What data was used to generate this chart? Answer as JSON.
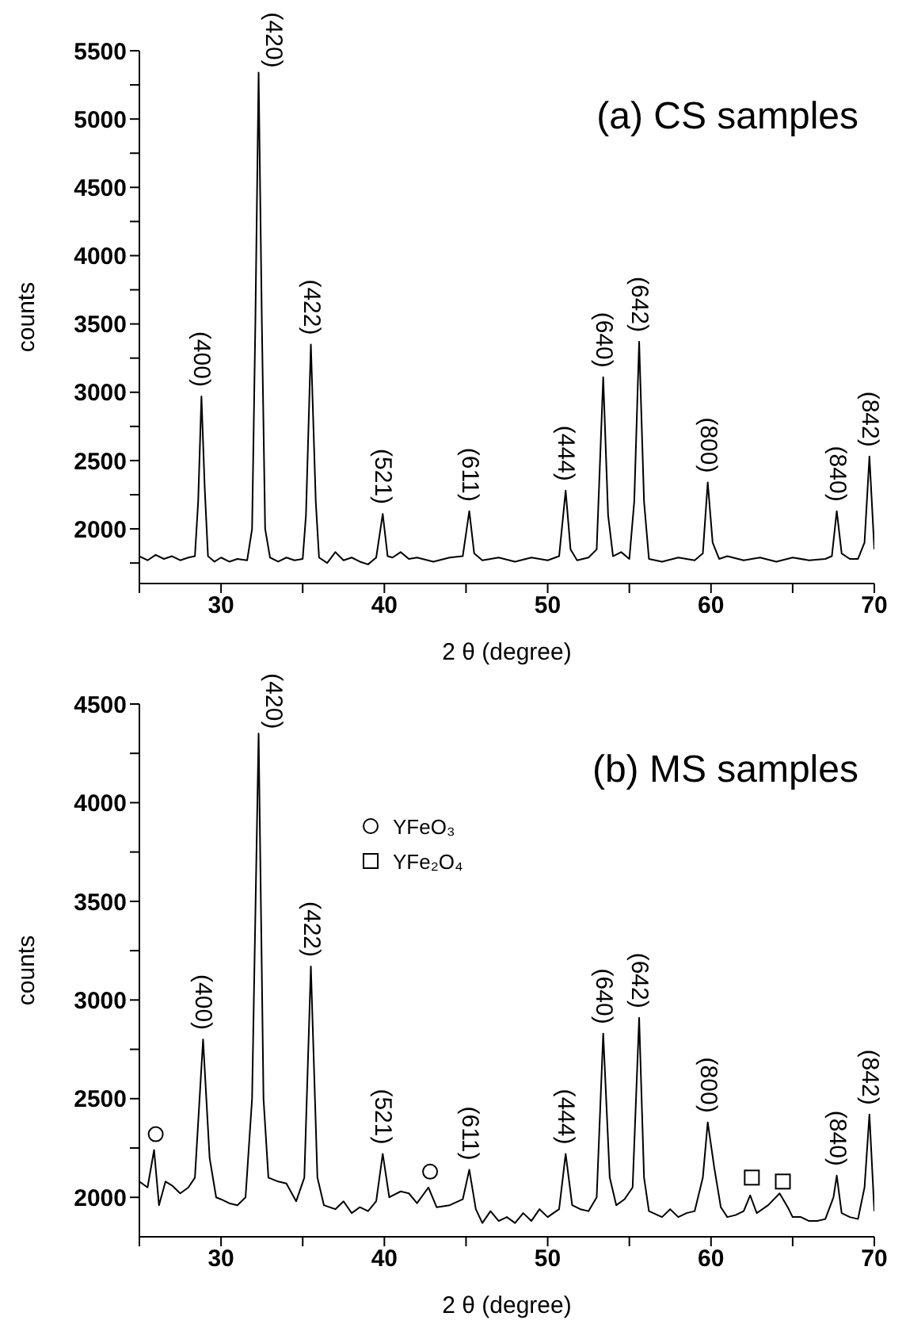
{
  "chart_data": [
    {
      "type": "line",
      "title": "(a) CS samples",
      "xlabel": "2 θ (degree)",
      "ylabel": "counts",
      "xlim": [
        25,
        70
      ],
      "xticks": [
        {
          "value": 25,
          "label": null
        },
        30,
        {
          "value": 35,
          "label": null
        },
        40,
        {
          "value": 45,
          "label": null
        },
        50,
        {
          "value": 55,
          "label": null
        },
        60,
        {
          "value": 65,
          "label": null
        },
        70
      ],
      "ylim": [
        1600,
        5500
      ],
      "yticks": [
        {
          "value": 1750,
          "label": null
        },
        2000,
        {
          "value": 2250,
          "label": null
        },
        2500,
        {
          "value": 2750,
          "label": null
        },
        3000,
        {
          "value": 3250,
          "label": null
        },
        3500,
        {
          "value": 3750,
          "label": null
        },
        4000,
        {
          "value": 4250,
          "label": null
        },
        4500,
        {
          "value": 4750,
          "label": null
        },
        5000,
        {
          "value": 5250,
          "label": null
        },
        5500
      ],
      "grid": false,
      "legend": false,
      "line_style": "solid",
      "marker": "none",
      "series": [
        {
          "color": "#000000",
          "x": [
            25,
            25.5,
            26,
            26.5,
            27,
            27.5,
            28,
            28.4,
            28.6,
            28.8,
            29.0,
            29.2,
            29.6,
            30,
            30.5,
            31,
            31.6,
            31.9,
            32.1,
            32.3,
            32.5,
            32.7,
            33,
            33.5,
            34,
            34.5,
            35,
            35.2,
            35.5,
            35.8,
            36,
            36.5,
            37,
            37.5,
            38,
            38.5,
            39,
            39.5,
            39.9,
            40.2,
            40.5,
            41,
            41.5,
            42,
            43,
            44,
            44.8,
            45.2,
            45.5,
            46,
            47,
            48,
            49,
            50,
            50.7,
            51.1,
            51.4,
            51.8,
            52.5,
            53.0,
            53.4,
            53.7,
            54,
            54.5,
            55,
            55.3,
            55.6,
            55.9,
            56.2,
            57,
            58,
            59,
            59.5,
            59.8,
            60.1,
            60.5,
            61,
            62,
            63,
            64,
            65,
            66,
            67,
            67.4,
            67.7,
            68,
            68.5,
            69,
            69.4,
            69.7,
            70
          ],
          "values": [
            1800,
            1770,
            1810,
            1780,
            1800,
            1770,
            1790,
            1800,
            2200,
            2970,
            2300,
            1800,
            1760,
            1790,
            1760,
            1780,
            1770,
            2000,
            3500,
            5340,
            3500,
            2000,
            1790,
            1760,
            1790,
            1770,
            1780,
            2100,
            3350,
            2200,
            1790,
            1750,
            1830,
            1770,
            1790,
            1760,
            1740,
            1790,
            2110,
            1800,
            1790,
            1830,
            1780,
            1790,
            1760,
            1790,
            1800,
            2130,
            1820,
            1770,
            1790,
            1760,
            1790,
            1770,
            1800,
            2280,
            1850,
            1770,
            1790,
            1850,
            3110,
            2100,
            1800,
            1830,
            1780,
            2200,
            3370,
            2200,
            1780,
            1760,
            1790,
            1770,
            1820,
            2340,
            1900,
            1780,
            1800,
            1770,
            1790,
            1760,
            1790,
            1770,
            1780,
            1800,
            2130,
            1820,
            1780,
            1780,
            1900,
            2530,
            1850
          ]
        }
      ],
      "annotations": [
        {
          "text": "(400)",
          "x": 28.8,
          "y": 2970
        },
        {
          "text": "(420)",
          "x": 32.3,
          "y": 5340
        },
        {
          "text": "(422)",
          "x": 35.5,
          "y": 3350
        },
        {
          "text": "(521)",
          "x": 39.9,
          "y": 2110
        },
        {
          "text": "(611)",
          "x": 45.2,
          "y": 2130
        },
        {
          "text": "(444)",
          "x": 51.1,
          "y": 2280
        },
        {
          "text": "(640)",
          "x": 53.4,
          "y": 3110
        },
        {
          "text": "(642)",
          "x": 55.6,
          "y": 3370
        },
        {
          "text": "(800)",
          "x": 59.8,
          "y": 2340
        },
        {
          "text": "(840)",
          "x": 67.7,
          "y": 2130
        },
        {
          "text": "(842)",
          "x": 69.7,
          "y": 2530
        }
      ]
    },
    {
      "type": "line",
      "title": "(b) MS samples",
      "xlabel": "2 θ (degree)",
      "ylabel": "counts",
      "xlim": [
        25,
        70
      ],
      "xticks": [
        {
          "value": 25,
          "label": null
        },
        30,
        {
          "value": 35,
          "label": null
        },
        40,
        {
          "value": 45,
          "label": null
        },
        50,
        {
          "value": 55,
          "label": null
        },
        60,
        {
          "value": 65,
          "label": null
        },
        70
      ],
      "ylim": [
        1800,
        4500
      ],
      "yticks": [
        2000,
        {
          "value": 2250,
          "label": null
        },
        2500,
        {
          "value": 2750,
          "label": null
        },
        3000,
        {
          "value": 3250,
          "label": null
        },
        3500,
        {
          "value": 3750,
          "label": null
        },
        4000,
        {
          "value": 4250,
          "label": null
        },
        4500
      ],
      "grid": false,
      "legend": "top",
      "line_style": "solid",
      "series": [
        {
          "color": "#000000",
          "marker": "none",
          "x": [
            25,
            25.5,
            25.9,
            26.2,
            26.6,
            27,
            27.5,
            28,
            28.4,
            28.9,
            29.3,
            29.7,
            30,
            30.5,
            31,
            31.5,
            31.9,
            32.3,
            32.6,
            32.9,
            33.5,
            34,
            34.6,
            35.1,
            35.5,
            35.9,
            36.3,
            37,
            37.5,
            38,
            38.5,
            39,
            39.5,
            39.9,
            40.3,
            41,
            41.5,
            42,
            42.7,
            43.2,
            44,
            44.8,
            45.2,
            45.6,
            46,
            46.5,
            47,
            47.5,
            48,
            48.5,
            49,
            49.5,
            50,
            50.7,
            51.1,
            51.5,
            52,
            52.5,
            53,
            53.4,
            53.8,
            54.2,
            54.7,
            55.2,
            55.6,
            55.9,
            56.2,
            57,
            57.5,
            58,
            58.5,
            59,
            59.5,
            59.8,
            60.2,
            60.6,
            61,
            61.5,
            62,
            62.4,
            62.8,
            63.5,
            64.2,
            64.7,
            65,
            65.5,
            66,
            66.5,
            67,
            67.5,
            67.7,
            68,
            68.5,
            69,
            69.4,
            69.7,
            70
          ],
          "values": [
            2080,
            2050,
            2240,
            1960,
            2080,
            2060,
            2020,
            2050,
            2100,
            2800,
            2200,
            2000,
            1990,
            1970,
            1960,
            2000,
            2500,
            4350,
            2500,
            2100,
            2080,
            2070,
            1980,
            2100,
            3170,
            2100,
            1960,
            1940,
            1980,
            1920,
            1950,
            1930,
            1980,
            2220,
            2000,
            2030,
            2020,
            1970,
            2050,
            1950,
            1960,
            1990,
            2140,
            1940,
            1870,
            1930,
            1880,
            1900,
            1870,
            1920,
            1880,
            1940,
            1900,
            1940,
            2220,
            1960,
            1940,
            1930,
            2000,
            2830,
            2100,
            1960,
            1990,
            2050,
            2910,
            2100,
            1930,
            1900,
            1940,
            1900,
            1920,
            1930,
            2100,
            2380,
            2150,
            1950,
            1900,
            1910,
            1930,
            2010,
            1920,
            1960,
            2020,
            1950,
            1900,
            1900,
            1880,
            1880,
            1890,
            2000,
            2110,
            1920,
            1900,
            1890,
            2050,
            2420,
            1930
          ]
        },
        {
          "type": "scatter",
          "name": "YFeO₃",
          "color": "#000000",
          "marker": "circle",
          "x": [
            26.0,
            42.8
          ],
          "values": [
            2320,
            2130
          ]
        },
        {
          "type": "scatter",
          "name": "YFe₂O₄",
          "color": "#000000",
          "marker": "square",
          "x": [
            62.5,
            64.4
          ],
          "values": [
            2100,
            2080
          ]
        }
      ],
      "annotations": [
        {
          "text": "(400)",
          "x": 28.9,
          "y": 2800
        },
        {
          "text": "(420)",
          "x": 32.3,
          "y": 4350
        },
        {
          "text": "(422)",
          "x": 35.5,
          "y": 3170
        },
        {
          "text": "(521)",
          "x": 39.9,
          "y": 2220
        },
        {
          "text": "(611)",
          "x": 45.2,
          "y": 2140
        },
        {
          "text": "(444)",
          "x": 51.1,
          "y": 2220
        },
        {
          "text": "(640)",
          "x": 53.4,
          "y": 2830
        },
        {
          "text": "(642)",
          "x": 55.6,
          "y": 2910
        },
        {
          "text": "(800)",
          "x": 59.8,
          "y": 2380
        },
        {
          "text": "(840)",
          "x": 67.7,
          "y": 2110
        },
        {
          "text": "(842)",
          "x": 69.7,
          "y": 2420
        }
      ]
    }
  ]
}
